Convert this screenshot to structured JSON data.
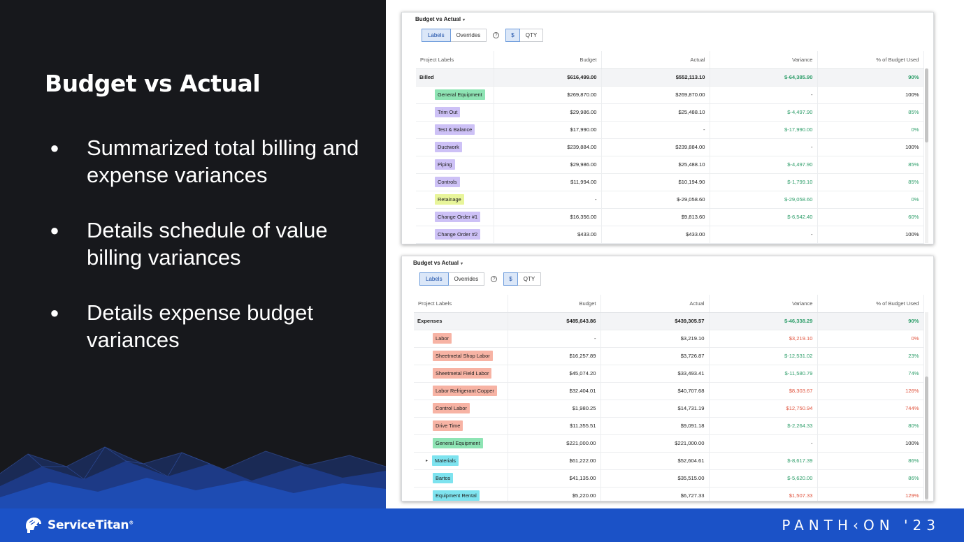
{
  "slide": {
    "title": "Budget vs Actual",
    "bullets": [
      "Summarized total billing and expense variances",
      "Details schedule of value billing variances",
      "Details expense budget variances"
    ],
    "bullet_char": "●"
  },
  "footer": {
    "brand": "ServiceTitan",
    "trademark": "®",
    "event": "PANTH‹ON '23"
  },
  "colors": {
    "panel_bg": "#17181c",
    "footer_bg": "#1b52c7",
    "positive": "#2e9e6a",
    "negative": "#e0533d",
    "tag_green": "#8ee4b4",
    "tag_purple": "#cdc1f6",
    "tag_yellow": "#e8f59a",
    "tag_salmon": "#f7b3a4",
    "tag_cyan": "#7ee3ef"
  },
  "cards": [
    {
      "title": "Budget vs Actual",
      "caret": "▾",
      "toggles": [
        "Labels",
        "Overrides",
        "$",
        "QTY"
      ],
      "help": "?",
      "columns": [
        "Project Labels",
        "Budget",
        "Actual",
        "Variance",
        "% of Budget Used"
      ],
      "total": {
        "label": "Billed",
        "budget": "$616,499.00",
        "actual": "$552,113.10",
        "variance": "$-64,385.90",
        "pct": "90%",
        "var_tone": "positive",
        "pct_tone": "positive"
      },
      "rows": [
        {
          "label": "General Equipment",
          "tag": "green",
          "budget": "$269,870.00",
          "actual": "$269,870.00",
          "variance": "-",
          "pct": "100%",
          "var_tone": "neutral",
          "pct_tone": "neutral"
        },
        {
          "label": "Trim Out",
          "tag": "purple",
          "budget": "$29,986.00",
          "actual": "$25,488.10",
          "variance": "$-4,497.90",
          "pct": "85%",
          "var_tone": "positive",
          "pct_tone": "positive"
        },
        {
          "label": "Test & Balance",
          "tag": "purple",
          "budget": "$17,990.00",
          "actual": "-",
          "variance": "$-17,990.00",
          "pct": "0%",
          "var_tone": "positive",
          "pct_tone": "positive"
        },
        {
          "label": "Ductwork",
          "tag": "purple",
          "budget": "$239,884.00",
          "actual": "$239,884.00",
          "variance": "-",
          "pct": "100%",
          "var_tone": "neutral",
          "pct_tone": "neutral"
        },
        {
          "label": "Piping",
          "tag": "purple",
          "budget": "$29,986.00",
          "actual": "$25,488.10",
          "variance": "$-4,497.90",
          "pct": "85%",
          "var_tone": "positive",
          "pct_tone": "positive"
        },
        {
          "label": "Controls",
          "tag": "purple",
          "budget": "$11,994.00",
          "actual": "$10,194.90",
          "variance": "$-1,799.10",
          "pct": "85%",
          "var_tone": "positive",
          "pct_tone": "positive"
        },
        {
          "label": "Retainage",
          "tag": "yellow",
          "budget": "-",
          "actual": "$-29,058.60",
          "variance": "$-29,058.60",
          "pct": "0%",
          "var_tone": "positive",
          "pct_tone": "positive"
        },
        {
          "label": "Change Order #1",
          "tag": "purple",
          "budget": "$16,356.00",
          "actual": "$9,813.60",
          "variance": "$-6,542.40",
          "pct": "60%",
          "var_tone": "positive",
          "pct_tone": "positive"
        },
        {
          "label": "Change Order #2",
          "tag": "purple",
          "budget": "$433.00",
          "actual": "$433.00",
          "variance": "-",
          "pct": "100%",
          "var_tone": "neutral",
          "pct_tone": "neutral"
        }
      ]
    },
    {
      "title": "Budget vs Actual",
      "caret": "▾",
      "toggles": [
        "Labels",
        "Overrides",
        "$",
        "QTY"
      ],
      "help": "?",
      "columns": [
        "Project Labels",
        "Budget",
        "Actual",
        "Variance",
        "% of Budget Used"
      ],
      "total": {
        "label": "Expenses",
        "budget": "$485,643.86",
        "actual": "$439,305.57",
        "variance": "$-46,338.29",
        "pct": "90%",
        "var_tone": "positive",
        "pct_tone": "positive"
      },
      "rows": [
        {
          "label": "Labor",
          "tag": "salmon",
          "budget": "-",
          "actual": "$3,219.10",
          "variance": "$3,219.10",
          "pct": "0%",
          "var_tone": "negative",
          "pct_tone": "negative"
        },
        {
          "label": "Sheetmetal Shop Labor",
          "tag": "salmon",
          "budget": "$16,257.89",
          "actual": "$3,726.87",
          "variance": "$-12,531.02",
          "pct": "23%",
          "var_tone": "positive",
          "pct_tone": "positive"
        },
        {
          "label": "Sheetmetal Field Labor",
          "tag": "salmon",
          "budget": "$45,074.20",
          "actual": "$33,493.41",
          "variance": "$-11,580.79",
          "pct": "74%",
          "var_tone": "positive",
          "pct_tone": "positive"
        },
        {
          "label": "Labor Refrigerant Copper",
          "tag": "salmon",
          "budget": "$32,404.01",
          "actual": "$40,707.68",
          "variance": "$8,303.67",
          "pct": "126%",
          "var_tone": "negative",
          "pct_tone": "negative"
        },
        {
          "label": "Control Labor",
          "tag": "salmon",
          "budget": "$1,980.25",
          "actual": "$14,731.19",
          "variance": "$12,750.94",
          "pct": "744%",
          "var_tone": "negative",
          "pct_tone": "negative"
        },
        {
          "label": "Drive Time",
          "tag": "salmon",
          "budget": "$11,355.51",
          "actual": "$9,091.18",
          "variance": "$-2,264.33",
          "pct": "80%",
          "var_tone": "positive",
          "pct_tone": "positive"
        },
        {
          "label": "General Equipment",
          "tag": "green",
          "budget": "$221,000.00",
          "actual": "$221,000.00",
          "variance": "-",
          "pct": "100%",
          "var_tone": "neutral",
          "pct_tone": "neutral"
        },
        {
          "label": "Materials",
          "tag": "cyan",
          "expand": "▸",
          "budget": "$61,222.00",
          "actual": "$52,604.61",
          "variance": "$-8,617.39",
          "pct": "86%",
          "var_tone": "positive",
          "pct_tone": "positive"
        },
        {
          "label": "Bartos",
          "tag": "cyan",
          "budget": "$41,135.00",
          "actual": "$35,515.00",
          "variance": "$-5,620.00",
          "pct": "86%",
          "var_tone": "positive",
          "pct_tone": "positive"
        },
        {
          "label": "Equipment Rental",
          "tag": "cyan",
          "budget": "$5,220.00",
          "actual": "$6,727.33",
          "variance": "$1,507.33",
          "pct": "129%",
          "var_tone": "negative",
          "pct_tone": "negative"
        }
      ]
    }
  ]
}
